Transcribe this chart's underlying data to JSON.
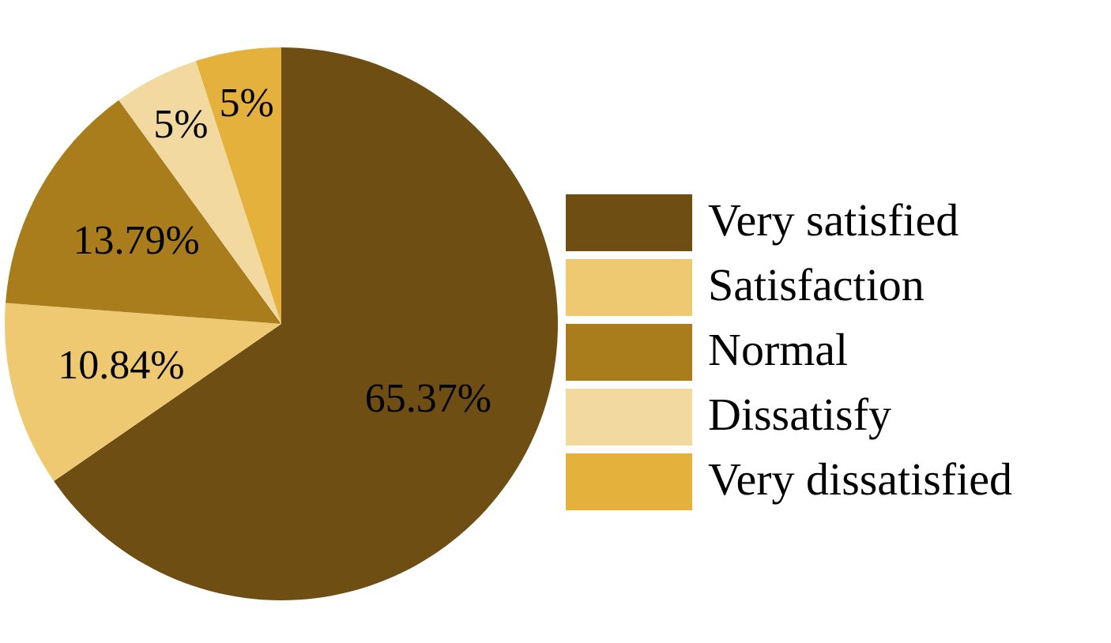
{
  "chart_data": {
    "type": "pie",
    "categories": [
      "Very satisfied",
      "Satisfaction",
      "Normal",
      "Dissatisfy",
      "Very dissatisfied"
    ],
    "values": [
      65.37,
      10.84,
      13.79,
      5,
      5
    ],
    "value_labels": [
      "65.37%",
      "10.84%",
      "13.79%",
      "5%",
      "5%"
    ],
    "colors": [
      "#6e4e13",
      "#efc872",
      "#a97c1c",
      "#f2d9a0",
      "#e4b13d"
    ],
    "legend": "right"
  }
}
